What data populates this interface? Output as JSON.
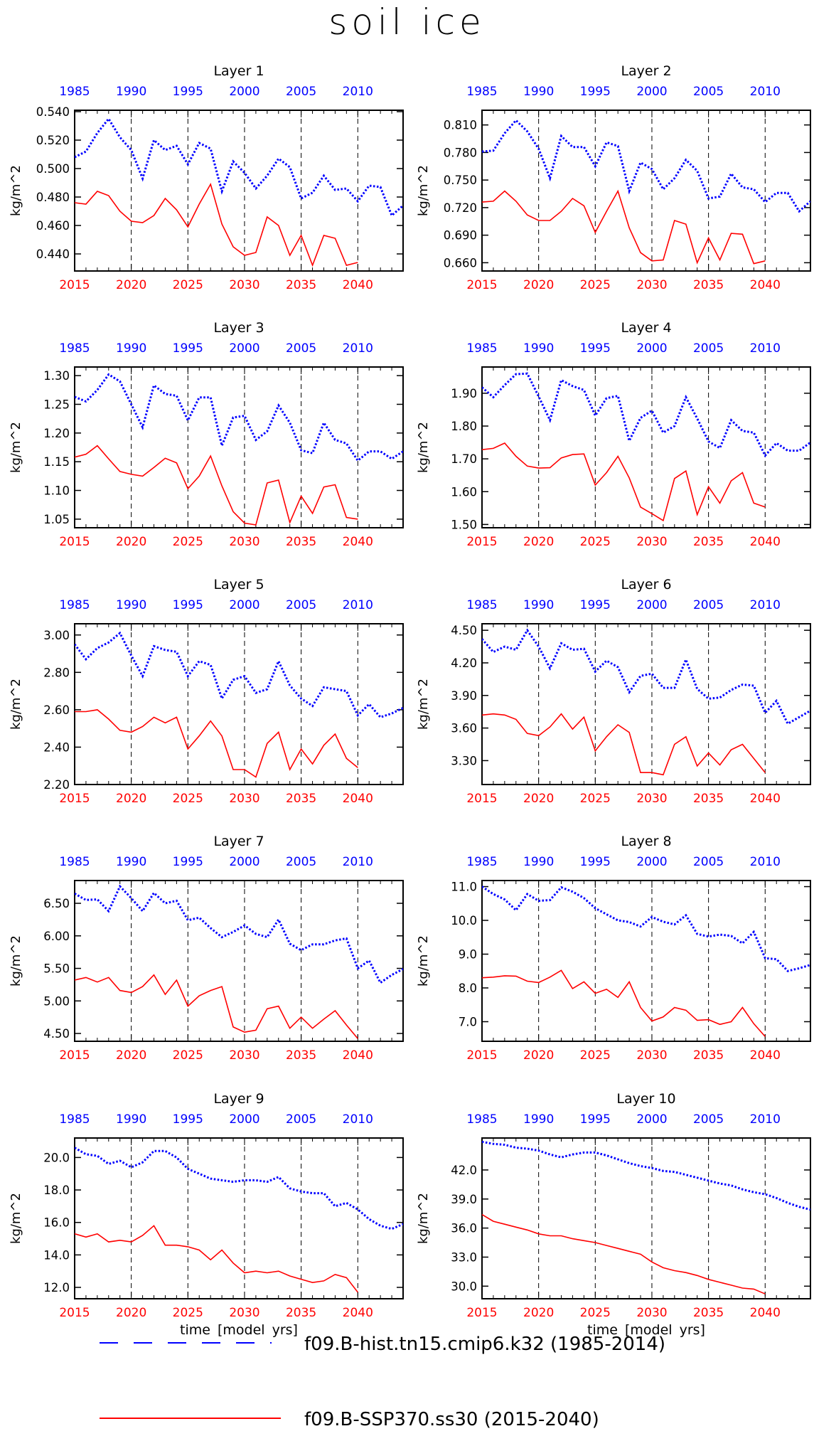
{
  "title": "soil ice",
  "chart_data": [
    {
      "type": "line",
      "title": "Layer 1",
      "ylabel": "kg/m^2",
      "ylim": [
        0.428,
        0.541
      ],
      "yticks": [
        0.44,
        0.46,
        0.48,
        0.5,
        0.52,
        0.54
      ],
      "ytick_labels": [
        "0.440",
        "0.460",
        "0.480",
        "0.500",
        "0.520",
        "0.540"
      ],
      "hist": [
        0.508,
        0.512,
        0.525,
        0.535,
        0.522,
        0.513,
        0.493,
        0.52,
        0.513,
        0.516,
        0.503,
        0.518,
        0.514,
        0.484,
        0.505,
        0.497,
        0.486,
        0.495,
        0.507,
        0.501,
        0.479,
        0.483,
        0.495,
        0.485,
        0.486,
        0.477,
        0.488,
        0.487,
        0.467,
        0.474
      ],
      "ssp": [
        0.476,
        0.475,
        0.484,
        0.481,
        0.47,
        0.463,
        0.462,
        0.467,
        0.479,
        0.471,
        0.459,
        0.475,
        0.489,
        0.461,
        0.445,
        0.439,
        0.441,
        0.466,
        0.46,
        0.439,
        0.453,
        0.432,
        0.453,
        0.451,
        0.432,
        0.434
      ]
    },
    {
      "type": "line",
      "title": "Layer 2",
      "ylabel": "kg/m^2",
      "ylim": [
        0.651,
        0.826
      ],
      "yticks": [
        0.66,
        0.69,
        0.72,
        0.75,
        0.78,
        0.81
      ],
      "ytick_labels": [
        "0.660",
        "0.690",
        "0.720",
        "0.750",
        "0.780",
        "0.810"
      ],
      "hist": [
        0.781,
        0.782,
        0.801,
        0.815,
        0.803,
        0.784,
        0.752,
        0.798,
        0.786,
        0.786,
        0.765,
        0.791,
        0.787,
        0.738,
        0.769,
        0.762,
        0.74,
        0.752,
        0.772,
        0.76,
        0.73,
        0.732,
        0.757,
        0.742,
        0.74,
        0.726,
        0.736,
        0.736,
        0.716,
        0.727
      ],
      "ssp": [
        0.726,
        0.727,
        0.738,
        0.727,
        0.712,
        0.706,
        0.706,
        0.716,
        0.73,
        0.722,
        0.693,
        0.716,
        0.738,
        0.698,
        0.671,
        0.662,
        0.663,
        0.706,
        0.702,
        0.66,
        0.687,
        0.663,
        0.692,
        0.691,
        0.659,
        0.662
      ]
    },
    {
      "type": "line",
      "title": "Layer 3",
      "ylabel": "kg/m^2",
      "ylim": [
        1.035,
        1.315
      ],
      "yticks": [
        1.05,
        1.1,
        1.15,
        1.2,
        1.25,
        1.3
      ],
      "ytick_labels": [
        "1.05",
        "1.10",
        "1.15",
        "1.20",
        "1.25",
        "1.30"
      ],
      "hist": [
        1.263,
        1.255,
        1.275,
        1.302,
        1.29,
        1.25,
        1.21,
        1.283,
        1.268,
        1.265,
        1.222,
        1.262,
        1.262,
        1.178,
        1.227,
        1.23,
        1.188,
        1.203,
        1.248,
        1.218,
        1.17,
        1.165,
        1.218,
        1.188,
        1.182,
        1.152,
        1.168,
        1.168,
        1.155,
        1.168
      ],
      "ssp": [
        1.158,
        1.163,
        1.178,
        1.155,
        1.133,
        1.128,
        1.125,
        1.14,
        1.156,
        1.148,
        1.103,
        1.125,
        1.16,
        1.108,
        1.063,
        1.043,
        1.04,
        1.113,
        1.118,
        1.044,
        1.09,
        1.06,
        1.106,
        1.11,
        1.053,
        1.05
      ]
    },
    {
      "type": "line",
      "title": "Layer 4",
      "ylabel": "kg/m^2",
      "ylim": [
        1.49,
        1.98
      ],
      "yticks": [
        1.5,
        1.6,
        1.7,
        1.8,
        1.9
      ],
      "ytick_labels": [
        "1.50",
        "1.60",
        "1.70",
        "1.80",
        "1.90"
      ],
      "hist": [
        1.918,
        1.888,
        1.925,
        1.958,
        1.96,
        1.89,
        1.818,
        1.94,
        1.922,
        1.91,
        1.832,
        1.885,
        1.892,
        1.755,
        1.825,
        1.847,
        1.78,
        1.8,
        1.888,
        1.823,
        1.753,
        1.733,
        1.818,
        1.785,
        1.78,
        1.71,
        1.748,
        1.725,
        1.725,
        1.75
      ],
      "ssp": [
        1.728,
        1.732,
        1.748,
        1.708,
        1.678,
        1.672,
        1.673,
        1.703,
        1.713,
        1.715,
        1.62,
        1.658,
        1.708,
        1.642,
        1.553,
        1.533,
        1.512,
        1.64,
        1.663,
        1.53,
        1.615,
        1.565,
        1.633,
        1.658,
        1.565,
        1.553
      ]
    },
    {
      "type": "line",
      "title": "Layer 5",
      "ylabel": "kg/m^2",
      "ylim": [
        2.2,
        3.06
      ],
      "yticks": [
        2.2,
        2.4,
        2.6,
        2.8,
        3.0
      ],
      "ytick_labels": [
        "2.20",
        "2.40",
        "2.60",
        "2.80",
        "3.00"
      ],
      "hist": [
        2.95,
        2.87,
        2.93,
        2.96,
        3.01,
        2.89,
        2.78,
        2.94,
        2.92,
        2.91,
        2.78,
        2.86,
        2.84,
        2.66,
        2.76,
        2.78,
        2.69,
        2.71,
        2.86,
        2.73,
        2.66,
        2.62,
        2.72,
        2.71,
        2.7,
        2.57,
        2.63,
        2.56,
        2.58,
        2.61
      ],
      "ssp": [
        2.59,
        2.59,
        2.6,
        2.55,
        2.49,
        2.48,
        2.51,
        2.56,
        2.53,
        2.56,
        2.39,
        2.46,
        2.54,
        2.46,
        2.28,
        2.28,
        2.24,
        2.42,
        2.48,
        2.28,
        2.39,
        2.31,
        2.41,
        2.47,
        2.34,
        2.29
      ]
    },
    {
      "type": "line",
      "title": "Layer 6",
      "ylabel": "kg/m^2",
      "ylim": [
        3.08,
        4.56
      ],
      "yticks": [
        3.3,
        3.6,
        3.9,
        4.2,
        4.5
      ],
      "ytick_labels": [
        "3.30",
        "3.60",
        "3.90",
        "4.20",
        "4.50"
      ],
      "hist": [
        4.42,
        4.3,
        4.35,
        4.32,
        4.5,
        4.35,
        4.15,
        4.38,
        4.32,
        4.33,
        4.12,
        4.22,
        4.16,
        3.93,
        4.08,
        4.1,
        3.97,
        3.97,
        4.23,
        3.96,
        3.87,
        3.88,
        3.95,
        4.0,
        3.99,
        3.74,
        3.85,
        3.64,
        3.7,
        3.76
      ],
      "ssp": [
        3.72,
        3.73,
        3.72,
        3.68,
        3.55,
        3.53,
        3.61,
        3.73,
        3.59,
        3.7,
        3.39,
        3.52,
        3.63,
        3.56,
        3.19,
        3.19,
        3.17,
        3.45,
        3.52,
        3.25,
        3.37,
        3.26,
        3.4,
        3.45,
        3.32,
        3.19
      ]
    },
    {
      "type": "line",
      "title": "Layer 7",
      "ylabel": "kg/m^2",
      "ylim": [
        4.38,
        6.85
      ],
      "yticks": [
        4.5,
        5.0,
        5.5,
        6.0,
        6.5
      ],
      "ytick_labels": [
        "4.50",
        "5.00",
        "5.50",
        "6.00",
        "6.50"
      ],
      "hist": [
        6.65,
        6.55,
        6.56,
        6.38,
        6.76,
        6.58,
        6.38,
        6.66,
        6.5,
        6.54,
        6.24,
        6.28,
        6.12,
        5.98,
        6.06,
        6.16,
        6.03,
        5.98,
        6.25,
        5.88,
        5.78,
        5.87,
        5.87,
        5.93,
        5.96,
        5.5,
        5.62,
        5.28,
        5.4,
        5.49
      ],
      "ssp": [
        5.32,
        5.36,
        5.29,
        5.36,
        5.16,
        5.13,
        5.22,
        5.4,
        5.1,
        5.32,
        4.92,
        5.08,
        5.16,
        5.22,
        4.6,
        4.52,
        4.55,
        4.88,
        4.92,
        4.58,
        4.75,
        4.58,
        4.72,
        4.85,
        4.63,
        4.42
      ]
    },
    {
      "type": "line",
      "title": "Layer 8",
      "ylabel": "kg/m^2",
      "ylim": [
        6.42,
        11.18
      ],
      "yticks": [
        7.0,
        8.0,
        9.0,
        10.0,
        11.0
      ],
      "ytick_labels": [
        "7.0",
        "8.0",
        "9.0",
        "10.0",
        "11.0"
      ],
      "hist": [
        11.0,
        10.78,
        10.62,
        10.3,
        10.78,
        10.58,
        10.6,
        10.98,
        10.85,
        10.66,
        10.36,
        10.18,
        10.0,
        9.95,
        9.82,
        10.1,
        9.96,
        9.88,
        10.15,
        9.6,
        9.52,
        9.58,
        9.54,
        9.32,
        9.66,
        8.88,
        8.85,
        8.5,
        8.58,
        8.68
      ],
      "ssp": [
        8.3,
        8.32,
        8.36,
        8.35,
        8.2,
        8.16,
        8.32,
        8.52,
        7.98,
        8.18,
        7.84,
        7.96,
        7.72,
        8.18,
        7.42,
        7.02,
        7.14,
        7.42,
        7.34,
        7.04,
        7.06,
        6.92,
        7.0,
        7.42,
        6.94,
        6.56
      ]
    },
    {
      "type": "line",
      "title": "Layer 9",
      "ylabel": "kg/m^2",
      "ylim": [
        11.3,
        21.2
      ],
      "yticks": [
        12.0,
        14.0,
        16.0,
        18.0,
        20.0
      ],
      "ytick_labels": [
        "12.0",
        "14.0",
        "16.0",
        "18.0",
        "20.0"
      ],
      "hist": [
        20.6,
        20.2,
        20.1,
        19.6,
        19.8,
        19.4,
        19.7,
        20.4,
        20.4,
        20.0,
        19.3,
        19.0,
        18.7,
        18.6,
        18.5,
        18.6,
        18.6,
        18.5,
        18.8,
        18.1,
        17.9,
        17.8,
        17.8,
        17.0,
        17.2,
        16.8,
        16.2,
        15.8,
        15.6,
        15.9
      ],
      "ssp": [
        15.3,
        15.1,
        15.3,
        14.8,
        14.9,
        14.8,
        15.2,
        15.8,
        14.6,
        14.6,
        14.5,
        14.3,
        13.7,
        14.3,
        13.5,
        12.9,
        13.0,
        12.9,
        13.0,
        12.7,
        12.5,
        12.3,
        12.4,
        12.8,
        12.6,
        11.7
      ]
    },
    {
      "type": "line",
      "title": "Layer 10",
      "ylabel": "kg/m^2",
      "ylim": [
        28.7,
        45.3
      ],
      "yticks": [
        30.0,
        33.0,
        36.0,
        39.0,
        42.0
      ],
      "ytick_labels": [
        "30.0",
        "33.0",
        "36.0",
        "39.0",
        "42.0"
      ],
      "hist": [
        44.9,
        44.7,
        44.6,
        44.3,
        44.2,
        44.0,
        43.6,
        43.3,
        43.6,
        43.8,
        43.8,
        43.5,
        43.1,
        42.7,
        42.4,
        42.2,
        41.9,
        41.8,
        41.5,
        41.2,
        40.9,
        40.6,
        40.4,
        40.0,
        39.7,
        39.5,
        39.1,
        38.6,
        38.2,
        37.9
      ],
      "ssp": [
        37.4,
        36.7,
        36.4,
        36.1,
        35.8,
        35.4,
        35.2,
        35.2,
        34.9,
        34.7,
        34.5,
        34.2,
        33.9,
        33.6,
        33.3,
        32.5,
        31.9,
        31.6,
        31.4,
        31.1,
        30.7,
        30.4,
        30.1,
        29.8,
        29.7,
        29.2
      ]
    }
  ],
  "axes": {
    "top_ticks": [
      "1985",
      "1990",
      "1995",
      "2000",
      "2005",
      "2010"
    ],
    "bottom_ticks": [
      "2015",
      "2020",
      "2025",
      "2030",
      "2035",
      "2040"
    ],
    "xlabel": "time [model yrs]"
  },
  "legend": {
    "hist": {
      "label": "f09.B-hist.tn15.cmip6.k32 (1985-2014)",
      "color": "#0000ff"
    },
    "ssp": {
      "label": "f09.B-SSP370.ss30 (2015-2040)",
      "color": "#ff0000"
    }
  },
  "colors": {
    "hist": "#0000ff",
    "ssp": "#ff0000",
    "axis": "#000000"
  }
}
